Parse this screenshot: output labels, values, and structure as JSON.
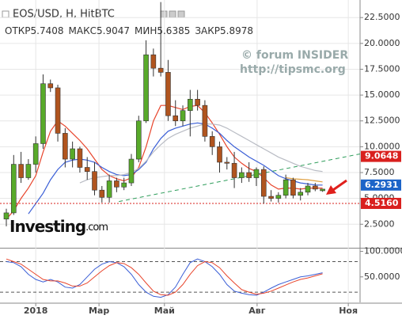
{
  "chart_data": {
    "type": "candlestick",
    "title": "EOS/USD, H, HitBTC",
    "ohlc": [
      {
        "label": "ОТКР",
        "value": 5.7408
      },
      {
        "label": "МАКС",
        "value": 5.9047
      },
      {
        "label": "МИН",
        "value": 5.6385
      },
      {
        "label": "ЗАКР",
        "value": 5.8978
      }
    ],
    "watermark": [
      "© forum INSIDER",
      "http://tipsmc.org"
    ],
    "logo": [
      "Investing",
      ".com"
    ],
    "x": [
      0,
      1,
      2,
      3,
      4,
      5,
      6,
      7,
      8,
      9,
      10,
      11,
      12,
      13,
      14,
      15,
      16,
      17,
      18,
      19,
      20,
      21,
      22,
      23,
      24,
      25,
      26,
      27,
      28,
      29,
      30,
      31,
      32,
      33,
      34,
      35,
      36,
      37,
      38,
      39,
      40,
      41,
      42,
      43
    ],
    "open": [
      3.0,
      3.6,
      8.3,
      7.0,
      8.3,
      10.3,
      16.1,
      15.7,
      11.3,
      8.8,
      9.8,
      8.0,
      7.6,
      5.8,
      5.1,
      6.7,
      6.1,
      6.5,
      8.8,
      12.5,
      18.9,
      17.6,
      17.2,
      13.0,
      12.5,
      13.5,
      14.6,
      14.0,
      11.0,
      10.0,
      8.5,
      8.4,
      7.0,
      7.5,
      7.0,
      7.8,
      5.2,
      5.0,
      5.3,
      6.8,
      5.3,
      5.6,
      6.2,
      5.7408
    ],
    "high": [
      4.0,
      9.2,
      9.5,
      8.8,
      11.0,
      17.0,
      16.5,
      16.0,
      11.8,
      10.5,
      10.0,
      9.0,
      8.5,
      6.2,
      7.3,
      7.0,
      7.0,
      9.3,
      13.0,
      20.3,
      19.5,
      24.0,
      18.4,
      14.5,
      14.0,
      15.5,
      15.5,
      14.5,
      11.5,
      10.5,
      9.0,
      9.5,
      8.0,
      8.5,
      8.0,
      8.1,
      5.8,
      5.6,
      7.3,
      7.0,
      6.0,
      6.5,
      6.5,
      5.9047
    ],
    "low": [
      2.3,
      3.4,
      6.5,
      6.8,
      7.5,
      9.8,
      15.3,
      10.5,
      8.0,
      8.0,
      7.5,
      6.8,
      5.3,
      4.6,
      4.6,
      5.6,
      5.8,
      6.2,
      8.5,
      12.3,
      16.8,
      16.8,
      12.5,
      12.0,
      12.0,
      11.0,
      13.5,
      10.5,
      9.2,
      7.5,
      7.8,
      6.0,
      6.5,
      6.6,
      6.2,
      4.5,
      4.7,
      4.6,
      5.0,
      5.0,
      4.8,
      5.3,
      5.7,
      5.6385
    ],
    "close": [
      3.6,
      8.3,
      7.0,
      8.3,
      10.3,
      16.1,
      15.7,
      11.3,
      8.8,
      9.8,
      8.0,
      7.6,
      5.8,
      5.1,
      6.7,
      6.1,
      6.5,
      8.8,
      12.5,
      18.9,
      17.6,
      17.2,
      13.0,
      12.5,
      13.5,
      14.6,
      14.0,
      11.0,
      10.0,
      8.5,
      8.4,
      7.0,
      7.5,
      7.0,
      7.8,
      5.2,
      5.0,
      5.3,
      6.8,
      5.3,
      5.6,
      6.2,
      5.9,
      5.8978
    ],
    "up_color": "#58aa2a",
    "down_color": "#b0541e",
    "overlays": [
      {
        "color": "#e8452c",
        "values": [
          3.0,
          3.8,
          5.0,
          6.0,
          7.2,
          9.5,
          11.5,
          12.5,
          12.0,
          11.3,
          10.6,
          9.8,
          8.8,
          7.8,
          7.2,
          6.9,
          6.7,
          7.0,
          8.0,
          10.0,
          12.5,
          14.0,
          14.0,
          13.8,
          13.6,
          13.9,
          14.0,
          13.3,
          12.3,
          11.2,
          10.0,
          9.0,
          8.4,
          7.9,
          7.6,
          7.0,
          6.3,
          5.9,
          6.0,
          6.0,
          5.9,
          6.0,
          6.0,
          6.0
        ]
      },
      {
        "color": "#3b5fd6",
        "values": [
          null,
          null,
          null,
          3.5,
          4.5,
          5.5,
          6.8,
          7.8,
          8.5,
          8.7,
          8.8,
          8.7,
          8.5,
          8.0,
          7.6,
          7.3,
          7.2,
          7.3,
          7.8,
          8.5,
          9.8,
          10.8,
          11.5,
          11.8,
          12.0,
          12.2,
          12.3,
          12.2,
          11.8,
          11.3,
          10.6,
          10.0,
          9.5,
          9.0,
          8.6,
          8.2,
          7.7,
          7.2,
          6.9,
          6.7,
          6.5,
          6.4,
          6.3,
          6.29
        ]
      },
      {
        "color": "#b9bcc4",
        "values": [
          null,
          null,
          null,
          null,
          null,
          null,
          null,
          null,
          null,
          null,
          6.5,
          6.8,
          7.0,
          7.1,
          7.2,
          7.2,
          7.3,
          7.5,
          7.9,
          8.6,
          9.5,
          10.2,
          10.8,
          11.2,
          11.5,
          11.8,
          12.0,
          12.2,
          12.2,
          12.1,
          11.8,
          11.4,
          11.0,
          10.6,
          10.2,
          9.8,
          9.4,
          9.0,
          8.7,
          8.4,
          8.1,
          7.9,
          7.7,
          7.6
        ]
      },
      {
        "color": "#e0a040",
        "values": [
          null,
          null,
          null,
          null,
          null,
          null,
          null,
          null,
          null,
          null,
          null,
          null,
          null,
          null,
          null,
          null,
          null,
          null,
          null,
          null,
          null,
          null,
          null,
          null,
          null,
          null,
          null,
          null,
          null,
          null,
          null,
          null,
          null,
          null,
          null,
          null,
          null,
          null,
          7.0,
          6.9,
          6.85,
          6.8,
          6.7,
          6.6
        ]
      }
    ],
    "trendline": {
      "x": [
        15.3,
        48.1
      ],
      "values": [
        4.7,
        9.3
      ],
      "color": "#2e9d5b"
    },
    "price_labels": [
      9.0648,
      6.2931,
      {
        "value": 4.516,
        "label": "4.5160"
      }
    ],
    "price_label_colors": [
      "#d9201e",
      "#1c64c8",
      "#d9201e"
    ],
    "xlim": [
      -0.86,
      48.1
    ],
    "ylim": [
      0.3,
      24.2
    ],
    "yticks": [
      {
        "value": 2.5,
        "label": "2.5000"
      },
      {
        "value": 5,
        "label": "5.0000"
      },
      {
        "value": 7.5,
        "label": "7.5000"
      },
      {
        "value": 10,
        "label": "10.0000"
      },
      {
        "value": 12.5,
        "label": "12.5000"
      },
      {
        "value": 15,
        "label": "15.0000"
      },
      {
        "value": 17.5,
        "label": "17.5000"
      },
      {
        "value": 20,
        "label": "20.0000"
      },
      {
        "value": 22.5,
        "label": "22.5000"
      }
    ],
    "xticks": [
      {
        "value": 4.0,
        "label": "2018"
      },
      {
        "value": 12.6,
        "label": "Мар"
      },
      {
        "value": 21.5,
        "label": "Май"
      },
      {
        "value": 34.1,
        "label": "Авг"
      },
      {
        "value": 46.5,
        "label": "Ноя"
      }
    ],
    "grid": true,
    "oscillator": {
      "ylim": [
        0,
        104
      ],
      "yticks": [
        {
          "value": 100,
          "label": "100.0000"
        },
        {
          "value": 50,
          "label": "50.0000"
        }
      ],
      "levels": [
        80,
        20
      ],
      "series": [
        {
          "color": "#3b5fd6",
          "values": [
            80,
            78,
            70,
            55,
            45,
            40,
            45,
            40,
            30,
            28,
            35,
            50,
            65,
            75,
            80,
            78,
            70,
            55,
            35,
            20,
            12,
            10,
            15,
            30,
            55,
            78,
            85,
            80,
            70,
            55,
            35,
            22,
            18,
            15,
            14,
            20,
            28,
            35,
            40,
            45,
            50,
            52,
            55,
            58
          ]
        },
        {
          "color": "#e8452c",
          "values": [
            85,
            80,
            75,
            65,
            55,
            45,
            42,
            42,
            38,
            32,
            32,
            38,
            50,
            62,
            72,
            78,
            76,
            68,
            55,
            38,
            22,
            15,
            14,
            20,
            35,
            55,
            72,
            80,
            78,
            68,
            52,
            38,
            25,
            20,
            16,
            18,
            22,
            28,
            34,
            40,
            45,
            48,
            52,
            56
          ]
        }
      ]
    }
  }
}
